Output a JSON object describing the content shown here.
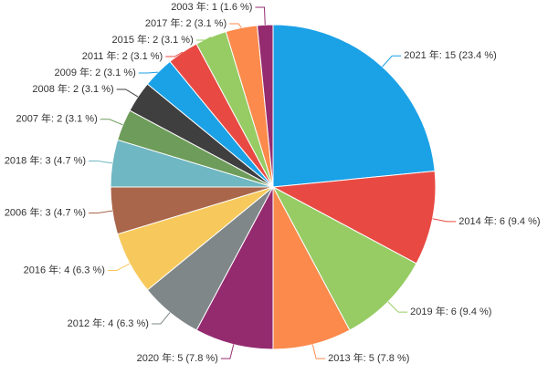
{
  "chart_data": {
    "type": "pie",
    "values": [
      15,
      6,
      6,
      5,
      5,
      4,
      4,
      3,
      3,
      2,
      2,
      2,
      2,
      2,
      2,
      1
    ],
    "value_labels": [
      "2021 年: 15 (23.4 %)",
      "2014 年: 6 (9.4 %)",
      "2019 年: 6 (9.4 %)",
      "2013 年: 5 (7.8 %)",
      "2020 年: 5 (7.8 %)",
      "2012 年: 4 (6.3 %)",
      "2016 年: 4 (6.3 %)",
      "2006 年: 3 (4.7 %)",
      "2018 年: 3 (4.7 %)",
      "2007 年: 2 (3.1 %)",
      "2008 年: 2 (3.1 %)",
      "2009 年: 2 (3.1 %)",
      "2011 年: 2 (3.1 %)",
      "2015 年: 2 (3.1 %)",
      "2017 年: 2 (3.1 %)",
      "2003 年: 1 (1.6 %)"
    ],
    "colors": [
      "#1ba1e6",
      "#e84a43",
      "#97cc64",
      "#fb8a4c",
      "#942b6f",
      "#7f8788",
      "#f7c95c",
      "#a9664a",
      "#6fb7c2",
      "#6e9c5a",
      "#3f3f3f",
      "#1ba1e6",
      "#e84a43",
      "#97cc64",
      "#fb8a4c",
      "#942b6f"
    ]
  }
}
